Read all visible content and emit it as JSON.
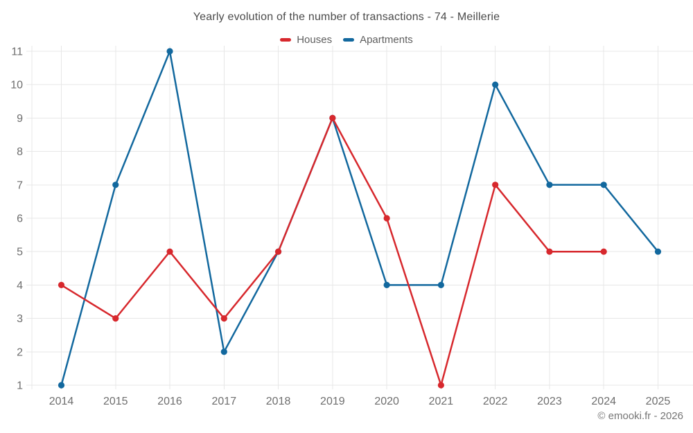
{
  "chart_data": {
    "type": "line",
    "title": "Yearly evolution of the number of transactions - 74 - Meillerie",
    "categories": [
      "2014",
      "2015",
      "2016",
      "2017",
      "2018",
      "2019",
      "2020",
      "2021",
      "2022",
      "2023",
      "2024",
      "2025"
    ],
    "series": [
      {
        "name": "Houses",
        "color": "#d7282d",
        "values": [
          4,
          3,
          5,
          3,
          5,
          9,
          6,
          1,
          7,
          5,
          5,
          null
        ]
      },
      {
        "name": "Apartments",
        "color": "#12689e",
        "values": [
          1,
          7,
          11,
          2,
          5,
          9,
          4,
          4,
          10,
          7,
          7,
          5
        ]
      }
    ],
    "yticks": [
      1,
      2,
      3,
      4,
      5,
      6,
      7,
      8,
      9,
      10,
      11
    ],
    "ylim": [
      1,
      11
    ],
    "xlabel": "",
    "ylabel": "",
    "grid": true,
    "legend_position": "top",
    "marker": "circle",
    "colors": {
      "grid": "#e7e7e7",
      "axis_text": "#6e6e6e",
      "title_text": "#4a4a4a",
      "legend_text": "#5e5e5e",
      "copyright_text": "#757575"
    }
  },
  "copyright": "© emooki.fr - 2026"
}
